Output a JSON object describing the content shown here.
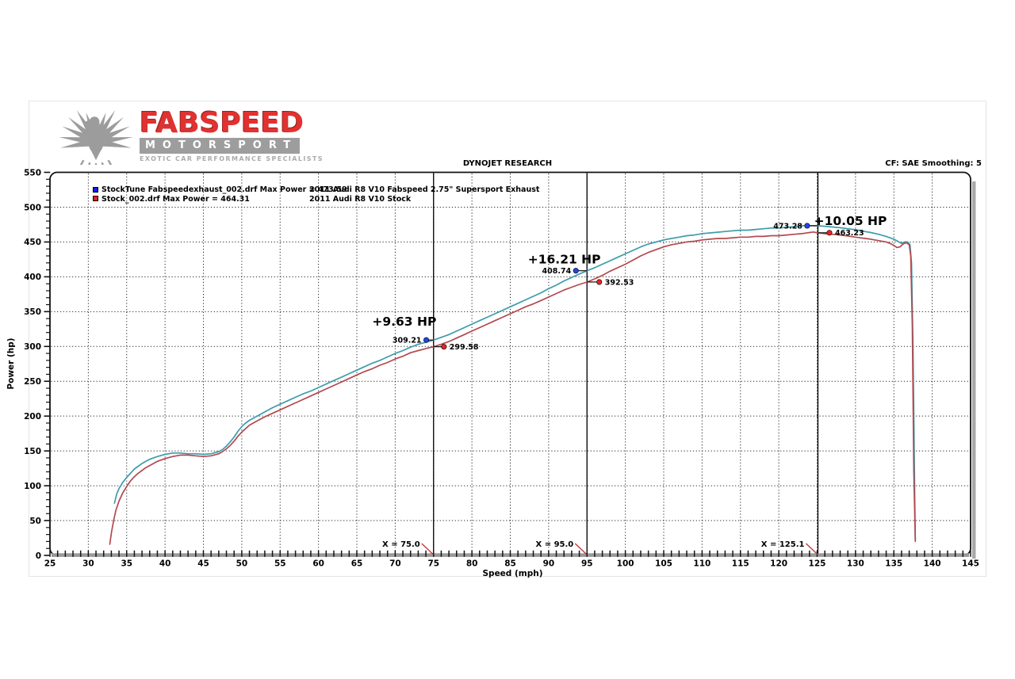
{
  "logo": {
    "brand": "FABSPEED",
    "sub_brand": "MOTORSPORT",
    "tagline": "EXOTIC CAR PERFORMANCE SPECIALISTS",
    "brand_color": "#e03231",
    "bar_color": "#9d9d9d",
    "emblem_color": "#9c9c9c",
    "emblem": "eagle-emblem"
  },
  "header": {
    "title": "DYNOJET RESEARCH",
    "settings": "CF: SAE  Smoothing: 5"
  },
  "legend": [
    {
      "marker_color": "#1a1aee",
      "file_label": "StockTune Fabspeedexhaust_002.drf Max Power = 473.59",
      "desc": "2011 Audi R8 V10 Fabspeed 2.75\" Supersport Exhaust"
    },
    {
      "marker_color": "#ee1a1a",
      "file_label": "Stock_002.drf Max Power = 464.31",
      "desc": "2011 Audi R8 V10 Stock"
    }
  ],
  "chart_data": {
    "type": "line",
    "title": "DYNOJET RESEARCH",
    "xlabel": "Speed (mph)",
    "ylabel": "Power (hp)",
    "xlim": [
      25,
      145
    ],
    "ylim": [
      0,
      550
    ],
    "xtick_step": 5,
    "xminor_step": 1,
    "ytick_step": 50,
    "yminor_step": 10,
    "grid": true,
    "grid_style": "dotted",
    "cursors": [
      {
        "label": "X = 75.0",
        "x": 75.0
      },
      {
        "label": "X = 95.0",
        "x": 95.0
      },
      {
        "label": "X = 125.1",
        "x": 125.1
      }
    ],
    "annotations": [
      {
        "text": "+9.63 HP",
        "mph": 67.0,
        "hp": 330
      },
      {
        "text": "+16.21 HP",
        "mph": 87.3,
        "hp": 419
      },
      {
        "text": "+10.05 HP",
        "mph": 124.6,
        "hp": 474.5
      }
    ],
    "point_markers": [
      {
        "series": 0,
        "label": "309.21",
        "mph": 74.05,
        "hp": 309.21,
        "cursor_x": 75.0,
        "label_side": "left"
      },
      {
        "series": 1,
        "label": "299.58",
        "mph": 76.35,
        "hp": 299.58,
        "cursor_x": 75.0,
        "label_side": "right"
      },
      {
        "series": 0,
        "label": "408.74",
        "mph": 93.55,
        "hp": 408.74,
        "cursor_x": 95.0,
        "label_side": "left"
      },
      {
        "series": 1,
        "label": "392.53",
        "mph": 96.6,
        "hp": 392.53,
        "cursor_x": 95.0,
        "label_side": "right"
      },
      {
        "series": 0,
        "label": "473.28",
        "mph": 123.7,
        "hp": 473.28,
        "cursor_x": 125.1,
        "label_side": "left"
      },
      {
        "series": 1,
        "label": "463.23",
        "mph": 126.6,
        "hp": 463.23,
        "cursor_x": 125.1,
        "label_side": "right"
      }
    ],
    "series": [
      {
        "name": "2011 Audi R8 V10 Fabspeed 2.75\" Supersport Exhaust",
        "color": "#3d9cab",
        "marker_color": "#2244ee",
        "max_power": 473.59,
        "points": [
          [
            33.4,
            75
          ],
          [
            33.7,
            88
          ],
          [
            34,
            96
          ],
          [
            34.5,
            105
          ],
          [
            35,
            112
          ],
          [
            35.5,
            118
          ],
          [
            36,
            124
          ],
          [
            36.5,
            128
          ],
          [
            37,
            132
          ],
          [
            37.5,
            135
          ],
          [
            38,
            138
          ],
          [
            38.5,
            140
          ],
          [
            39,
            142
          ],
          [
            40,
            145
          ],
          [
            41,
            147
          ],
          [
            42,
            147
          ],
          [
            43,
            146
          ],
          [
            44,
            146
          ],
          [
            45,
            145
          ],
          [
            46,
            146
          ],
          [
            47,
            149
          ],
          [
            47.5,
            152
          ],
          [
            48,
            157
          ],
          [
            48.5,
            163
          ],
          [
            49,
            170
          ],
          [
            49.5,
            178
          ],
          [
            50,
            185
          ],
          [
            50.5,
            190
          ],
          [
            51,
            194
          ],
          [
            52,
            200
          ],
          [
            53,
            206
          ],
          [
            54,
            212
          ],
          [
            55,
            217
          ],
          [
            56,
            222
          ],
          [
            57,
            227
          ],
          [
            58,
            232
          ],
          [
            59,
            236
          ],
          [
            60,
            241
          ],
          [
            61,
            246
          ],
          [
            62,
            251
          ],
          [
            63,
            256
          ],
          [
            64,
            261
          ],
          [
            65,
            266
          ],
          [
            66,
            271
          ],
          [
            67,
            276
          ],
          [
            68,
            280
          ],
          [
            69,
            285
          ],
          [
            70,
            290
          ],
          [
            71,
            294
          ],
          [
            72,
            299
          ],
          [
            73,
            303
          ],
          [
            74,
            306
          ],
          [
            75,
            309.2
          ],
          [
            76,
            313
          ],
          [
            77,
            317
          ],
          [
            78,
            322
          ],
          [
            79,
            327
          ],
          [
            80,
            332
          ],
          [
            81,
            337
          ],
          [
            82,
            342
          ],
          [
            83,
            347
          ],
          [
            84,
            352
          ],
          [
            85,
            357
          ],
          [
            86,
            362
          ],
          [
            87,
            367
          ],
          [
            88,
            372
          ],
          [
            89,
            377
          ],
          [
            90,
            383
          ],
          [
            91,
            388
          ],
          [
            92,
            394
          ],
          [
            93,
            399
          ],
          [
            94,
            404
          ],
          [
            95,
            408.7
          ],
          [
            96,
            413
          ],
          [
            97,
            418
          ],
          [
            98,
            423
          ],
          [
            99,
            428
          ],
          [
            100,
            433
          ],
          [
            101,
            438
          ],
          [
            102,
            443
          ],
          [
            103,
            447
          ],
          [
            104,
            450
          ],
          [
            105,
            453
          ],
          [
            106,
            455
          ],
          [
            107,
            457
          ],
          [
            108,
            459
          ],
          [
            109,
            460
          ],
          [
            110,
            462
          ],
          [
            111,
            463
          ],
          [
            112,
            464
          ],
          [
            113,
            465
          ],
          [
            114,
            466
          ],
          [
            115,
            467
          ],
          [
            116,
            467
          ],
          [
            117,
            468
          ],
          [
            118,
            469
          ],
          [
            119,
            470
          ],
          [
            120,
            470
          ],
          [
            121,
            471
          ],
          [
            122,
            472
          ],
          [
            123,
            473.3
          ],
          [
            124,
            473.5
          ],
          [
            125,
            473.3
          ],
          [
            126,
            472.5
          ],
          [
            127,
            471.5
          ],
          [
            128,
            470.5
          ],
          [
            129,
            469
          ],
          [
            130,
            467.5
          ],
          [
            131,
            465.5
          ],
          [
            132,
            463.5
          ],
          [
            133,
            461
          ],
          [
            134,
            458
          ],
          [
            135,
            454
          ],
          [
            135.5,
            451
          ],
          [
            136,
            448
          ],
          [
            136.4,
            450
          ],
          [
            136.8,
            450
          ],
          [
            137.1,
            446
          ],
          [
            137.3,
            420
          ],
          [
            137.5,
            300
          ],
          [
            137.7,
            100
          ],
          [
            137.8,
            22
          ]
        ]
      },
      {
        "name": "2011 Audi R8 V10 Stock",
        "color": "#b2494f",
        "marker_color": "#ee2222",
        "max_power": 464.31,
        "points": [
          [
            32.8,
            16
          ],
          [
            33,
            32
          ],
          [
            33.3,
            50
          ],
          [
            33.6,
            65
          ],
          [
            34,
            78
          ],
          [
            34.5,
            90
          ],
          [
            35,
            99
          ],
          [
            35.5,
            107
          ],
          [
            36,
            113
          ],
          [
            36.5,
            118
          ],
          [
            37,
            122
          ],
          [
            37.5,
            126
          ],
          [
            38,
            129
          ],
          [
            39,
            135
          ],
          [
            40,
            139
          ],
          [
            41,
            142
          ],
          [
            42,
            144
          ],
          [
            43,
            144
          ],
          [
            44,
            143
          ],
          [
            45,
            142
          ],
          [
            46,
            143
          ],
          [
            47,
            146
          ],
          [
            47.5,
            149
          ],
          [
            48,
            153
          ],
          [
            48.5,
            158
          ],
          [
            49,
            164
          ],
          [
            49.5,
            171
          ],
          [
            50,
            177
          ],
          [
            50.5,
            182
          ],
          [
            51,
            187
          ],
          [
            52,
            193
          ],
          [
            53,
            199
          ],
          [
            54,
            204
          ],
          [
            55,
            209
          ],
          [
            56,
            214
          ],
          [
            57,
            219
          ],
          [
            58,
            224
          ],
          [
            59,
            229
          ],
          [
            60,
            234
          ],
          [
            61,
            239
          ],
          [
            62,
            244
          ],
          [
            63,
            249
          ],
          [
            64,
            254
          ],
          [
            65,
            259
          ],
          [
            66,
            264
          ],
          [
            67,
            268
          ],
          [
            68,
            273
          ],
          [
            69,
            277
          ],
          [
            70,
            282
          ],
          [
            71,
            286
          ],
          [
            72,
            291
          ],
          [
            73,
            294
          ],
          [
            74,
            297
          ],
          [
            75,
            299.6
          ],
          [
            76,
            303
          ],
          [
            77,
            307
          ],
          [
            78,
            312
          ],
          [
            79,
            317
          ],
          [
            80,
            322
          ],
          [
            81,
            327
          ],
          [
            82,
            332
          ],
          [
            83,
            337
          ],
          [
            84,
            342
          ],
          [
            85,
            347
          ],
          [
            86,
            352
          ],
          [
            87,
            357
          ],
          [
            88,
            361
          ],
          [
            89,
            366
          ],
          [
            90,
            371
          ],
          [
            91,
            376
          ],
          [
            92,
            381
          ],
          [
            93,
            385
          ],
          [
            94,
            389
          ],
          [
            95,
            392.5
          ],
          [
            96,
            397
          ],
          [
            97,
            402
          ],
          [
            98,
            408
          ],
          [
            99,
            413
          ],
          [
            100,
            418
          ],
          [
            101,
            424
          ],
          [
            102,
            430
          ],
          [
            103,
            435
          ],
          [
            104,
            439
          ],
          [
            105,
            443
          ],
          [
            106,
            446
          ],
          [
            107,
            448
          ],
          [
            108,
            450
          ],
          [
            109,
            451
          ],
          [
            110,
            453
          ],
          [
            111,
            454
          ],
          [
            112,
            455
          ],
          [
            113,
            455
          ],
          [
            114,
            456
          ],
          [
            115,
            457
          ],
          [
            116,
            457
          ],
          [
            117,
            458
          ],
          [
            118,
            458
          ],
          [
            119,
            459
          ],
          [
            120,
            459
          ],
          [
            121,
            460
          ],
          [
            122,
            461
          ],
          [
            123,
            462
          ],
          [
            124,
            463.5
          ],
          [
            124.5,
            464.3
          ],
          [
            125,
            463.2
          ],
          [
            126,
            462
          ],
          [
            127,
            461
          ],
          [
            128,
            460
          ],
          [
            129,
            458.5
          ],
          [
            130,
            457
          ],
          [
            131,
            455.5
          ],
          [
            132,
            454
          ],
          [
            133,
            452
          ],
          [
            134,
            450
          ],
          [
            134.5,
            448
          ],
          [
            135,
            445
          ],
          [
            135.4,
            442
          ],
          [
            135.8,
            443
          ],
          [
            136.2,
            447
          ],
          [
            136.6,
            449
          ],
          [
            137,
            446
          ],
          [
            137.2,
            430
          ],
          [
            137.4,
            330
          ],
          [
            137.6,
            120
          ],
          [
            137.8,
            20
          ]
        ]
      }
    ]
  }
}
